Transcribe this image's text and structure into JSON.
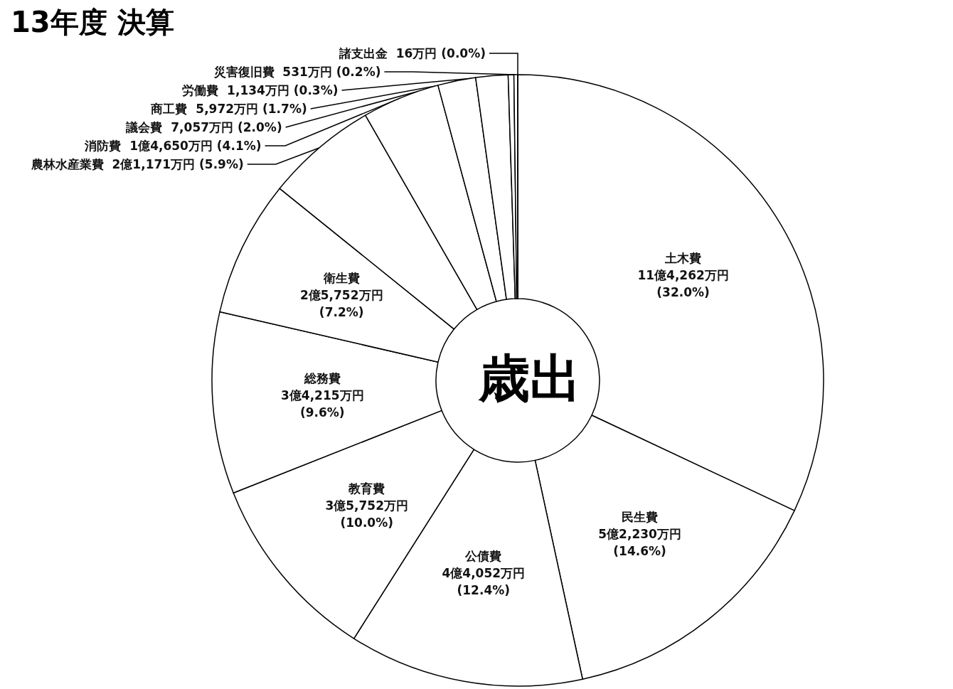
{
  "chart_data": {
    "type": "donut",
    "title": "13年度 決算",
    "categories": [
      "土木費",
      "民生費",
      "公債費",
      "教育費",
      "総務費",
      "衛生費",
      "農林水産業費",
      "消防費",
      "議会費",
      "商工費",
      "労働費",
      "災害復旧費",
      "諸支出金"
    ],
    "values": [
      32.0,
      14.6,
      12.4,
      10.0,
      9.6,
      7.2,
      5.9,
      4.1,
      2.0,
      1.7,
      0.3,
      0.2,
      0.0
    ],
    "value_labels": [
      "11億4,262万円 (32.0%)",
      "5億2,230万円 (14.6%)",
      "4億4,052万円 (12.4%)",
      "3億5,752万円 (10.0%)",
      "3億4,215万円 (9.6%)",
      "2億5,752万円 (7.2%)",
      "2億1,171万円 (5.9%)",
      "1億4,650万円 (4.1%)",
      "7,057万円 (2.0%)",
      "5,972万円 (1.7%)",
      "1,134万円 (0.3%)",
      "531万円 (0.2%)",
      "16万円 (0.0%)"
    ],
    "colors": [
      "#ffffff",
      "#ffffff",
      "#ffffff",
      "#ffffff",
      "#ffffff",
      "#ffffff",
      "#ffffff",
      "#ffffff",
      "#ffffff",
      "#ffffff",
      "#ffffff",
      "#ffffff",
      "#ffffff"
    ],
    "annotations": [
      "歳出"
    ],
    "legend": false
  }
}
